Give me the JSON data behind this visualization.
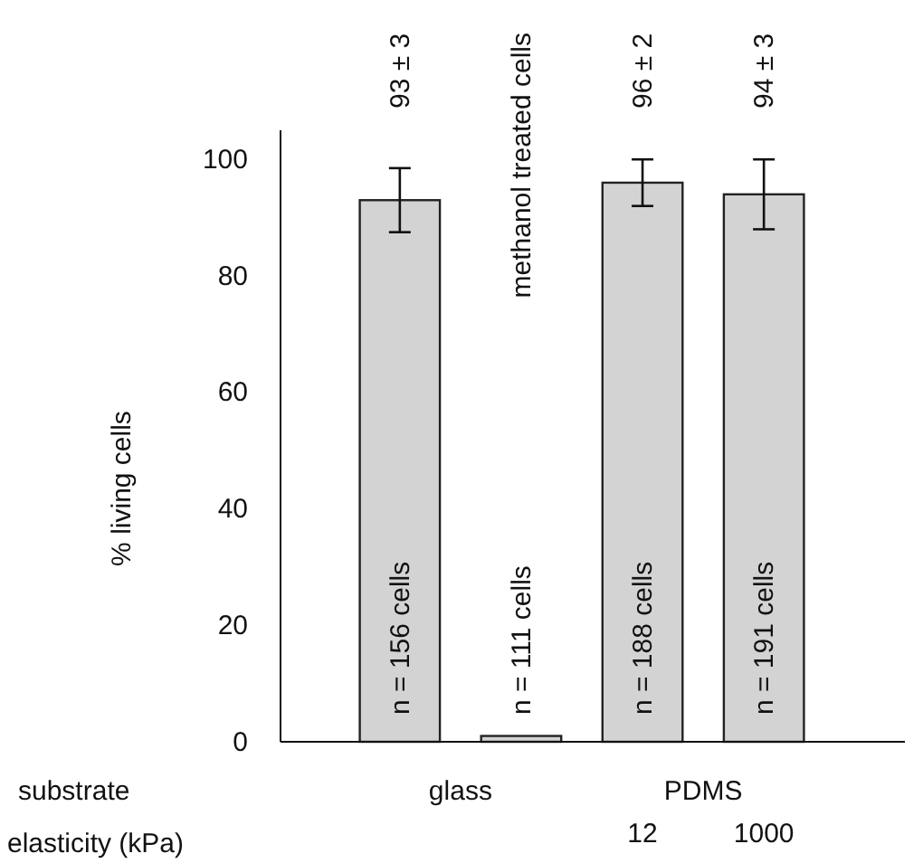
{
  "chart_data": {
    "type": "bar",
    "ylabel": "% living cells",
    "categories": [
      null,
      null,
      "12",
      "1000"
    ],
    "values": [
      93,
      1,
      96,
      94
    ],
    "errors": [
      5.5,
      null,
      4,
      6
    ],
    "color": "#d3d3d3",
    "value_labels": [
      "93 ± 3",
      null,
      "96 ± 2",
      "94 ± 3"
    ],
    "ylim": [
      0,
      105
    ],
    "yticks": [
      0,
      20,
      40,
      60,
      80,
      100
    ],
    "annotations": [
      "n = 156 cells",
      "n = 111 cells",
      "n = 188 cells",
      "n = 191 cells",
      "methanol treated cells",
      "substrate",
      "glass",
      "PDMS",
      "elasticity (kPa)"
    ]
  }
}
